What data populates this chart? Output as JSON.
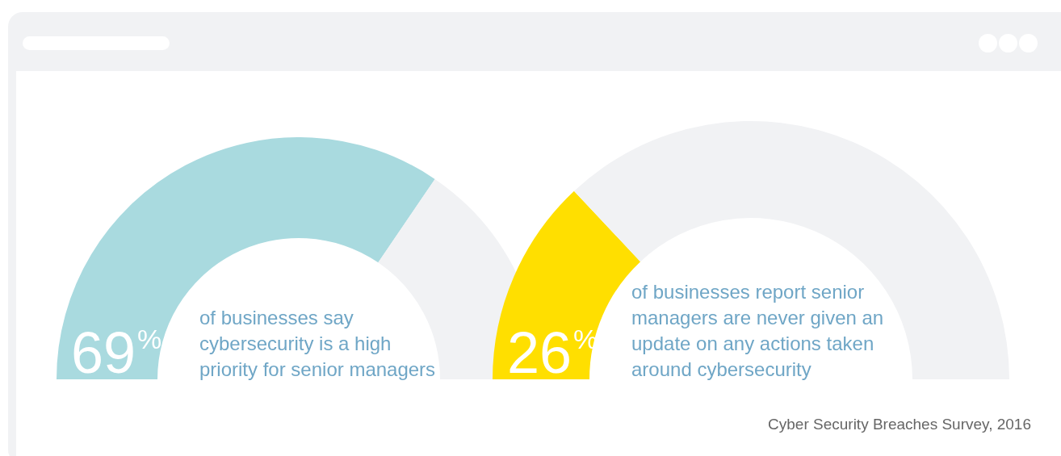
{
  "chart_data": [
    {
      "type": "donut",
      "categories": [
        null,
        null
      ],
      "values": [
        69,
        31
      ],
      "colors": [
        "#a9dadf",
        "#f1f2f4"
      ],
      "value_labels": [
        "69%",
        null
      ],
      "legend": false,
      "annotations": [
        "of businesses say cybersecurity is a high priority for senior managers"
      ]
    },
    {
      "type": "donut",
      "categories": [
        null,
        null
      ],
      "values": [
        26,
        74
      ],
      "colors": [
        "#ffdf00",
        "#f1f2f4"
      ],
      "value_labels": [
        "26%",
        null
      ],
      "legend": false,
      "annotations": [
        "of businesses report senior managers are never given an update on any actions taken around cybersecurity",
        "Cyber Security Breaches Survey, 2016"
      ]
    }
  ]
}
